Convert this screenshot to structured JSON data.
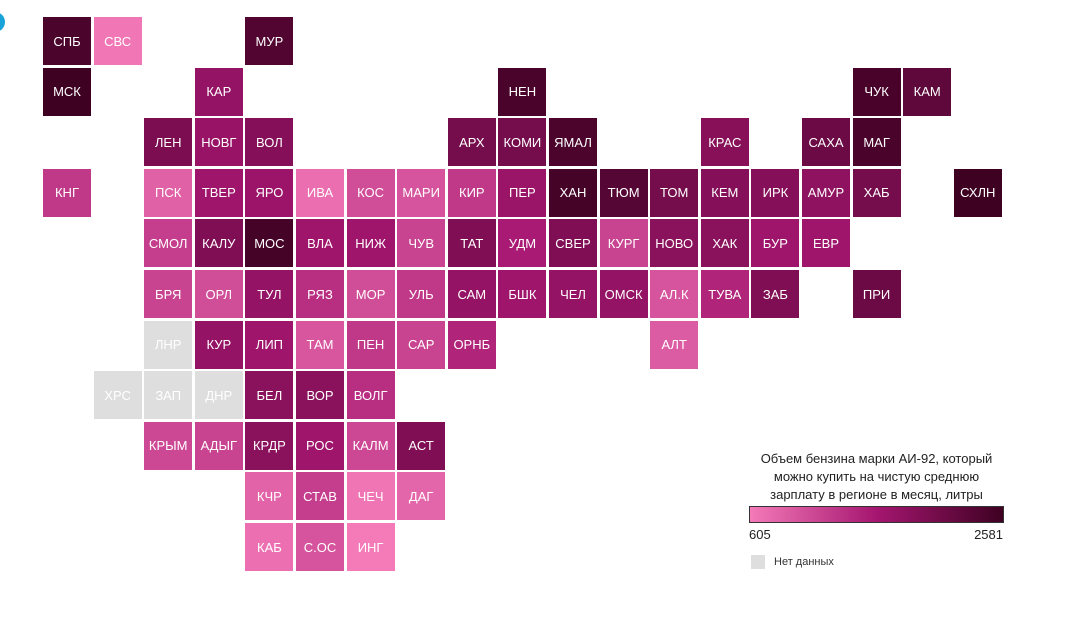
{
  "chart_data": {
    "type": "heatmap",
    "subtype": "tile-grid-map",
    "title": "",
    "legend": {
      "title": "Объем бензина марки АИ-92, который можно купить на чистую среднюю зарплату в регионе в месяц, литры",
      "min_label": "605",
      "max_label": "2581",
      "min": 605,
      "max": 2581,
      "color_low": "#f47ab8",
      "color_high": "#3e0122",
      "nodata_label": "Нет данных",
      "nodata_color": "#dedede",
      "placement": "bottom-right"
    },
    "accent_mark_color": "#1aa3d9",
    "regions": [
      {
        "label": "СПБ",
        "col": 0,
        "row": 0,
        "value": 2460
      },
      {
        "label": "СВС",
        "col": 1,
        "row": 0,
        "value": 640
      },
      {
        "label": "МУР",
        "col": 4,
        "row": 0,
        "value": 2400
      },
      {
        "label": "МСК",
        "col": 0,
        "row": 1,
        "value": 2581
      },
      {
        "label": "КАР",
        "col": 3,
        "row": 1,
        "value": 1750
      },
      {
        "label": "НЕН",
        "col": 9,
        "row": 1,
        "value": 2470
      },
      {
        "label": "ЧУК",
        "col": 16,
        "row": 1,
        "value": 2480
      },
      {
        "label": "КАМ",
        "col": 17,
        "row": 1,
        "value": 2260
      },
      {
        "label": "ЛЕН",
        "col": 2,
        "row": 2,
        "value": 2000
      },
      {
        "label": "НОВГ",
        "col": 3,
        "row": 2,
        "value": 1720
      },
      {
        "label": "ВОЛ",
        "col": 4,
        "row": 2,
        "value": 1900
      },
      {
        "label": "АРХ",
        "col": 8,
        "row": 2,
        "value": 2050
      },
      {
        "label": "КОМИ",
        "col": 9,
        "row": 2,
        "value": 2050
      },
      {
        "label": "ЯМАЛ",
        "col": 10,
        "row": 2,
        "value": 2450
      },
      {
        "label": "КРАС",
        "col": 13,
        "row": 2,
        "value": 1880
      },
      {
        "label": "САХА",
        "col": 15,
        "row": 2,
        "value": 2150
      },
      {
        "label": "МАГ",
        "col": 16,
        "row": 2,
        "value": 2470
      },
      {
        "label": "КНГ",
        "col": 0,
        "row": 3,
        "value": 1250
      },
      {
        "label": "ПСК",
        "col": 2,
        "row": 3,
        "value": 850
      },
      {
        "label": "ТВЕР",
        "col": 3,
        "row": 3,
        "value": 1650
      },
      {
        "label": "ЯРО",
        "col": 4,
        "row": 3,
        "value": 1680
      },
      {
        "label": "ИВА",
        "col": 5,
        "row": 3,
        "value": 720
      },
      {
        "label": "КОС",
        "col": 6,
        "row": 3,
        "value": 1050
      },
      {
        "label": "МАРИ",
        "col": 7,
        "row": 3,
        "value": 980
      },
      {
        "label": "КИР",
        "col": 8,
        "row": 3,
        "value": 1250
      },
      {
        "label": "ПЕР",
        "col": 9,
        "row": 3,
        "value": 1700
      },
      {
        "label": "ХАН",
        "col": 10,
        "row": 3,
        "value": 2500
      },
      {
        "label": "ТЮМ",
        "col": 11,
        "row": 3,
        "value": 2350
      },
      {
        "label": "ТОМ",
        "col": 12,
        "row": 3,
        "value": 2050
      },
      {
        "label": "КЕМ",
        "col": 13,
        "row": 3,
        "value": 1900
      },
      {
        "label": "ИРК",
        "col": 14,
        "row": 3,
        "value": 1900
      },
      {
        "label": "АМУР",
        "col": 15,
        "row": 3,
        "value": 1800
      },
      {
        "label": "ХАБ",
        "col": 16,
        "row": 3,
        "value": 2050
      },
      {
        "label": "СХЛН",
        "col": 18,
        "row": 3,
        "value": 2581
      },
      {
        "label": "СМОЛ",
        "col": 2,
        "row": 4,
        "value": 1200
      },
      {
        "label": "КАЛУ",
        "col": 3,
        "row": 4,
        "value": 1950
      },
      {
        "label": "МОС",
        "col": 4,
        "row": 4,
        "value": 2500
      },
      {
        "label": "ВЛА",
        "col": 5,
        "row": 4,
        "value": 1650
      },
      {
        "label": "НИЖ",
        "col": 6,
        "row": 4,
        "value": 1650
      },
      {
        "label": "ЧУВ",
        "col": 7,
        "row": 4,
        "value": 1150
      },
      {
        "label": "ТАТ",
        "col": 8,
        "row": 4,
        "value": 1950
      },
      {
        "label": "УДМ",
        "col": 9,
        "row": 4,
        "value": 1550
      },
      {
        "label": "СВЕР",
        "col": 10,
        "row": 4,
        "value": 1950
      },
      {
        "label": "КУРГ",
        "col": 11,
        "row": 4,
        "value": 1150
      },
      {
        "label": "НОВО",
        "col": 12,
        "row": 4,
        "value": 1850
      },
      {
        "label": "ХАК",
        "col": 13,
        "row": 4,
        "value": 1850
      },
      {
        "label": "БУР",
        "col": 14,
        "row": 4,
        "value": 1650
      },
      {
        "label": "ЕВР",
        "col": 15,
        "row": 4,
        "value": 1650
      },
      {
        "label": "БРЯ",
        "col": 2,
        "row": 5,
        "value": 1150
      },
      {
        "label": "ОРЛ",
        "col": 3,
        "row": 5,
        "value": 1050
      },
      {
        "label": "ТУЛ",
        "col": 4,
        "row": 5,
        "value": 1750
      },
      {
        "label": "РЯЗ",
        "col": 5,
        "row": 5,
        "value": 1350
      },
      {
        "label": "МОР",
        "col": 6,
        "row": 5,
        "value": 1050
      },
      {
        "label": "УЛЬ",
        "col": 7,
        "row": 5,
        "value": 1250
      },
      {
        "label": "САМ",
        "col": 8,
        "row": 5,
        "value": 1750
      },
      {
        "label": "БШК",
        "col": 9,
        "row": 5,
        "value": 1650
      },
      {
        "label": "ЧЕЛ",
        "col": 10,
        "row": 5,
        "value": 1750
      },
      {
        "label": "ОМСК",
        "col": 11,
        "row": 5,
        "value": 1750
      },
      {
        "label": "АЛ.К",
        "col": 12,
        "row": 5,
        "value": 980
      },
      {
        "label": "ТУВА",
        "col": 13,
        "row": 5,
        "value": 1450
      },
      {
        "label": "ЗАБ",
        "col": 14,
        "row": 5,
        "value": 1950
      },
      {
        "label": "ПРИ",
        "col": 16,
        "row": 5,
        "value": 2150
      },
      {
        "label": "ЛНР",
        "col": 2,
        "row": 6,
        "value": null
      },
      {
        "label": "КУР",
        "col": 3,
        "row": 6,
        "value": 1750
      },
      {
        "label": "ЛИП",
        "col": 4,
        "row": 6,
        "value": 1650
      },
      {
        "label": "ТАМ",
        "col": 5,
        "row": 6,
        "value": 960
      },
      {
        "label": "ПЕН",
        "col": 6,
        "row": 6,
        "value": 1250
      },
      {
        "label": "САР",
        "col": 7,
        "row": 6,
        "value": 1150
      },
      {
        "label": "ОРНБ",
        "col": 8,
        "row": 6,
        "value": 1450
      },
      {
        "label": "АЛТ",
        "col": 12,
        "row": 6,
        "value": 900
      },
      {
        "label": "ХРС",
        "col": 1,
        "row": 7,
        "value": null
      },
      {
        "label": "ЗАП",
        "col": 2,
        "row": 7,
        "value": null
      },
      {
        "label": "ДНР",
        "col": 3,
        "row": 7,
        "value": null
      },
      {
        "label": "БЕЛ",
        "col": 4,
        "row": 7,
        "value": 1850
      },
      {
        "label": "ВОР",
        "col": 5,
        "row": 7,
        "value": 1850
      },
      {
        "label": "ВОЛГ",
        "col": 6,
        "row": 7,
        "value": 1350
      },
      {
        "label": "КРЫМ",
        "col": 2,
        "row": 8,
        "value": 1100
      },
      {
        "label": "АДЫГ",
        "col": 3,
        "row": 8,
        "value": 1150
      },
      {
        "label": "КРДР",
        "col": 4,
        "row": 8,
        "value": 1850
      },
      {
        "label": "РОС",
        "col": 5,
        "row": 8,
        "value": 1650
      },
      {
        "label": "КАЛМ",
        "col": 6,
        "row": 8,
        "value": 1100
      },
      {
        "label": "АСТ",
        "col": 7,
        "row": 8,
        "value": 1950
      },
      {
        "label": "КЧР",
        "col": 4,
        "row": 9,
        "value": 830
      },
      {
        "label": "СТАВ",
        "col": 5,
        "row": 9,
        "value": 1200
      },
      {
        "label": "ЧЕЧ",
        "col": 6,
        "row": 9,
        "value": 650
      },
      {
        "label": "ДАГ",
        "col": 7,
        "row": 9,
        "value": 800
      },
      {
        "label": "КАБ",
        "col": 4,
        "row": 10,
        "value": 700
      },
      {
        "label": "С.ОС",
        "col": 5,
        "row": 10,
        "value": 980
      },
      {
        "label": "ИНГ",
        "col": 6,
        "row": 10,
        "value": 605
      }
    ]
  }
}
